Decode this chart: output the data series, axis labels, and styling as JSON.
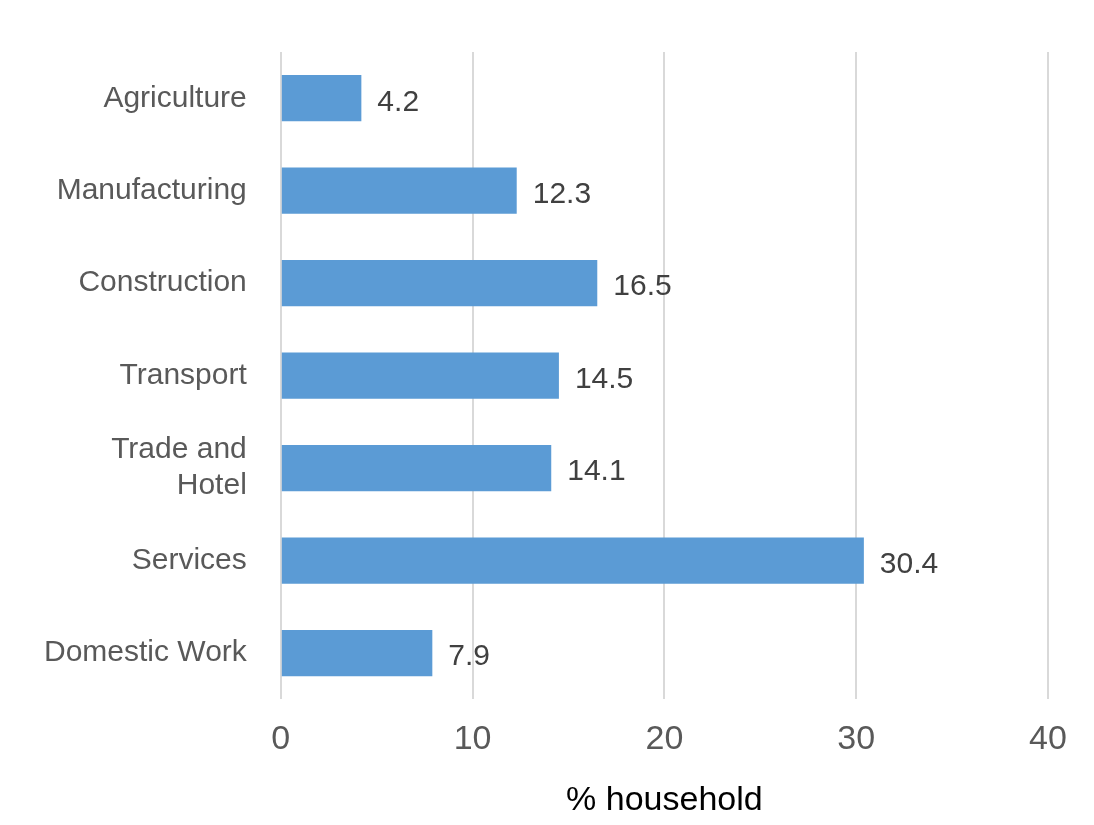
{
  "chart_data": {
    "type": "bar",
    "orientation": "horizontal",
    "xlabel": "% household",
    "categories": [
      "Agriculture",
      "Manufacturing",
      "Construction",
      "Transport",
      "Trade and Hotel",
      "Services",
      "Domestic Work"
    ],
    "values": [
      4.2,
      12.3,
      16.5,
      14.5,
      14.1,
      30.4,
      7.9
    ],
    "color": "#5b9bd5",
    "xlim": [
      0,
      40
    ],
    "xticks": [
      0,
      10,
      20,
      30,
      40
    ],
    "grid": "x",
    "legend": false,
    "data_labels": true
  }
}
